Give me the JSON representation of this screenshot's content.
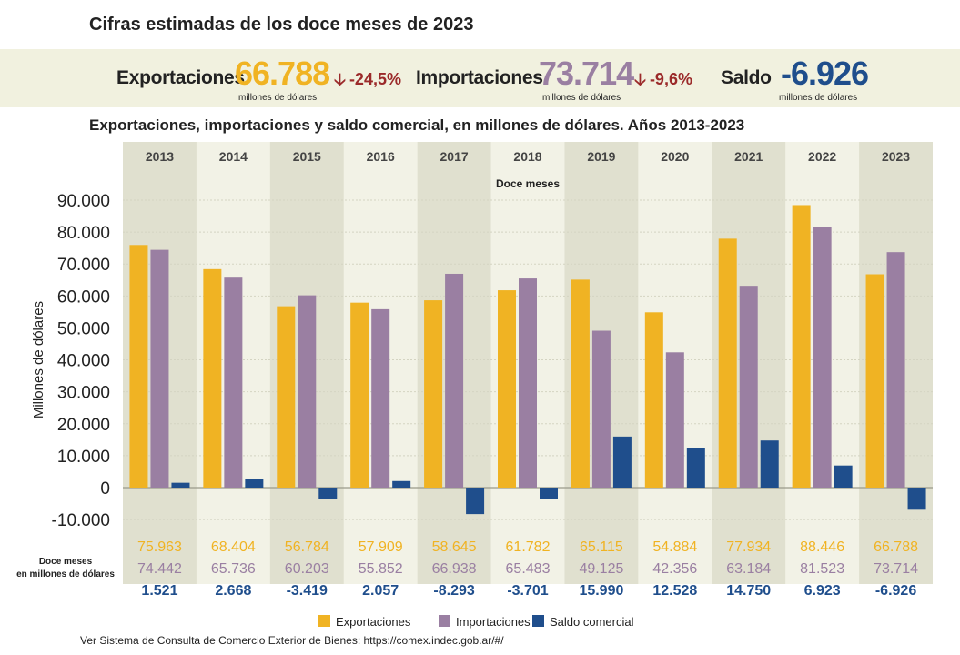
{
  "header": {
    "title": "Cifras estimadas de los doce meses de 2023",
    "subtitle": "Exportaciones, importaciones y saldo comercial, en millones de dólares. Años 2013-2023"
  },
  "kpis": {
    "exports": {
      "label": "Exportaciones",
      "value": "66.788",
      "unit": "millones de dólares",
      "change": "-24,5%",
      "color": "#f0b323"
    },
    "imports": {
      "label": "Importaciones",
      "value": "73.714",
      "unit": "millones de dólares",
      "change": "-9,6%",
      "color": "#9a7fa2"
    },
    "balance": {
      "label": "Saldo",
      "value": "-6.926",
      "unit": "millones de dólares",
      "color": "#1f4e8c"
    }
  },
  "chart_data": {
    "type": "bar",
    "title": "Exportaciones, importaciones y saldo comercial, en millones de dólares. Años 2013-2023",
    "period_label": "Doce meses",
    "ylabel": "Millones de dólares",
    "ylim": [
      -10000,
      90000
    ],
    "yticks": [
      90000,
      80000,
      70000,
      60000,
      50000,
      40000,
      30000,
      20000,
      10000,
      0,
      -10000
    ],
    "ytick_labels": [
      "90.000",
      "80.000",
      "70.000",
      "60.000",
      "50.000",
      "40.000",
      "30.000",
      "20.000",
      "10.000",
      "0",
      "-10.000"
    ],
    "categories": [
      "2013",
      "2014",
      "2015",
      "2016",
      "2017",
      "2018",
      "2019",
      "2020",
      "2021",
      "2022",
      "2023"
    ],
    "series": [
      {
        "name": "Exportaciones",
        "color": "#f0b323",
        "values": [
          75963,
          68404,
          56784,
          57909,
          58645,
          61782,
          65115,
          54884,
          77934,
          88446,
          66788
        ],
        "labels": [
          "75.963",
          "68.404",
          "56.784",
          "57.909",
          "58.645",
          "61.782",
          "65.115",
          "54.884",
          "77.934",
          "88.446",
          "66.788"
        ]
      },
      {
        "name": "Importaciones",
        "color": "#9a7fa2",
        "values": [
          74442,
          65736,
          60203,
          55852,
          66938,
          65483,
          49125,
          42356,
          63184,
          81523,
          73714
        ],
        "labels": [
          "74.442",
          "65.736",
          "60.203",
          "55.852",
          "66.938",
          "65.483",
          "49.125",
          "42.356",
          "63.184",
          "81.523",
          "73.714"
        ]
      },
      {
        "name": "Saldo comercial",
        "color": "#1f4e8c",
        "values": [
          1521,
          2668,
          -3419,
          2057,
          -8293,
          -3701,
          15990,
          12528,
          14750,
          6923,
          -6926
        ],
        "labels": [
          "1.521",
          "2.668",
          "-3.419",
          "2.057",
          "-8.293",
          "-3.701",
          "15.990",
          "12.528",
          "14.750",
          "6.923",
          "-6.926"
        ]
      }
    ],
    "table_label_line1": "Doce meses",
    "table_label_line2": "en millones de dólares",
    "legend_position": "bottom",
    "grid": true
  },
  "footer": {
    "text": "Ver Sistema de Consulta de Comercio Exterior de Bienes: https://comex.indec.gob.ar/#/"
  }
}
